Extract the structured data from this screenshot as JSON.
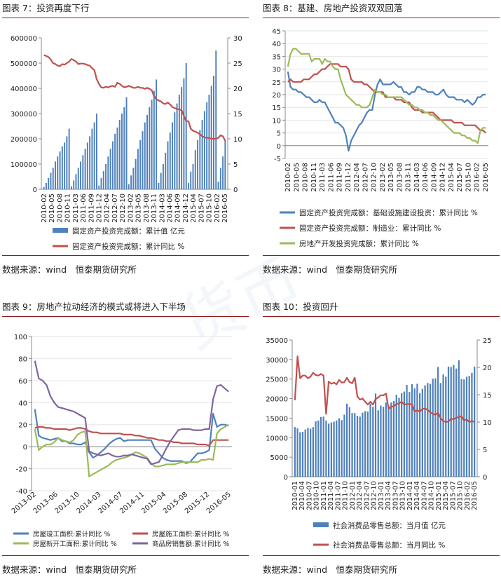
{
  "panels": [
    {
      "title": "图表 7：投资再度下行",
      "source": "数据来源：wind　恒泰期货研究所"
    },
    {
      "title": "图表 8：基建、房地产投资双双回落",
      "source": "数据来源：wind　恒泰期货研究所"
    },
    {
      "title": "图表 9：房地产拉动经济的模式或将进入下半场",
      "source": "数据来源：wind　恒泰期货研究所"
    },
    {
      "title": "图表 10：投资回升",
      "source": "数据来源：wind　恒泰期货研究所"
    }
  ],
  "colors": {
    "blue": "#4f81bd",
    "red": "#c0504d",
    "green": "#9bbb59",
    "purple": "#8064a2",
    "rule": "#8b1a1a",
    "grid": "#d9d9d9"
  },
  "chart_data": [
    {
      "type": "bar",
      "x_ticks": [
        "2010-02",
        "2010-05",
        "2010-08",
        "2010-11",
        "2011-03",
        "2011-06",
        "2011-09",
        "2011-12",
        "2012-04",
        "2012-07",
        "2012-10",
        "2013-02",
        "2013-05",
        "2013-08",
        "2013-11",
        "2014-03",
        "2014-06",
        "2014-09",
        "2014-12",
        "2015-04",
        "2015-07",
        "2015-10",
        "2016-02",
        "2016-05"
      ],
      "ylim": [
        0,
        600000
      ],
      "y_ticks": [
        "0",
        "100000",
        "200000",
        "300000",
        "400000",
        "500000",
        "600000"
      ],
      "y2lim": [
        0,
        30
      ],
      "y2_ticks": [
        "0",
        "5",
        "10",
        "15",
        "20",
        "25",
        "30"
      ],
      "series": [
        {
          "name": "固定资产投资完成额：累计值 亿元",
          "kind": "bar",
          "axis": "left",
          "values": [
            9000,
            25000,
            45000,
            65000,
            85000,
            110000,
            130000,
            150000,
            170000,
            185000,
            210000,
            240000,
            12000,
            35000,
            60000,
            85000,
            110000,
            135000,
            160000,
            185000,
            210000,
            240000,
            265000,
            300000,
            15000,
            45000,
            72000,
            100000,
            130000,
            160000,
            190000,
            220000,
            245000,
            275000,
            300000,
            325000,
            365000,
            20000,
            55000,
            85000,
            120000,
            160000,
            195000,
            230000,
            265000,
            295000,
            325000,
            355000,
            390000,
            435000,
            25000,
            65000,
            100000,
            145000,
            190000,
            225000,
            265000,
            305000,
            340000,
            375000,
            405000,
            440000,
            500000,
            25000,
            70000,
            100000,
            155000,
            195000,
            235000,
            275000,
            310000,
            345000,
            375000,
            410000,
            450000,
            550000,
            30000,
            85000,
            130000,
            195000
          ]
        },
        {
          "name": "固定资产投资完成额：累计同比 %",
          "kind": "line",
          "axis": "right",
          "values": [
            26.6,
            26.4,
            26.2,
            25.7,
            25.0,
            24.8,
            24.5,
            24.4,
            24.8,
            24.7,
            25.0,
            25.3,
            25.8,
            25.6,
            25.3,
            24.8,
            24.9,
            24.9,
            24.8,
            24.6,
            24.5,
            24.0,
            23.6,
            21.8,
            20.9,
            20.2,
            20.1,
            20.3,
            20.2,
            20.4,
            20.5,
            20.3,
            21.1,
            20.9,
            20.5,
            20.2,
            20.3,
            20.5,
            20.3,
            20.1,
            20.1,
            20.3,
            20.1,
            20.1,
            19.9,
            20.1,
            19.9,
            19.6,
            18.5,
            17.8,
            17.6,
            17.4,
            17.0,
            16.9,
            17.2,
            16.8,
            16.3,
            16.1,
            15.9,
            15.8,
            15.7,
            14.6,
            13.5,
            13.5,
            12.0,
            11.6,
            11.4,
            11.2,
            10.9,
            10.5,
            10.3,
            10.2,
            10.2,
            10.0,
            10.0,
            10.0,
            10.2,
            10.7,
            10.5,
            9.6
          ]
        }
      ]
    },
    {
      "type": "line",
      "x_ticks": [
        "2010-02",
        "2010-05",
        "2010-08",
        "2010-11",
        "2011-03",
        "2011-06",
        "2011-09",
        "2011-12",
        "2012-04",
        "2012-07",
        "2012-10",
        "2013-02",
        "2013-05",
        "2013-08",
        "2013-11",
        "2014-03",
        "2014-06",
        "2014-09",
        "2014-12",
        "2015-04",
        "2015-07",
        "2015-10",
        "2016-02",
        "2016-05"
      ],
      "ylim": [
        -5,
        45
      ],
      "y_ticks": [
        "-5",
        "0",
        "5",
        "10",
        "15",
        "20",
        "25",
        "30",
        "35",
        "40",
        "45"
      ],
      "series": [
        {
          "name": "固定资产投资完成额：基础设施建设投资：累计同比 %",
          "values": [
            29,
            23,
            22,
            22,
            21,
            21,
            20,
            19,
            19,
            18,
            17,
            17,
            18,
            17,
            17,
            15,
            13,
            11,
            9,
            9,
            8,
            7,
            4,
            -2,
            2,
            4,
            6,
            8,
            9,
            11,
            13,
            14,
            14,
            20,
            24,
            26,
            24,
            24,
            24,
            24,
            25,
            24,
            23,
            23,
            21,
            21,
            20,
            21,
            21,
            23,
            23,
            22,
            22,
            21,
            21,
            21,
            20,
            20,
            21,
            22,
            20,
            19,
            19,
            19,
            18,
            18,
            18,
            17,
            18,
            17,
            16,
            17,
            19,
            19,
            20,
            20
          ]
        },
        {
          "name": "固定资产投资完成额：制造业：累计同比 %",
          "values": [
            25,
            26,
            25,
            25,
            25,
            25,
            26,
            26,
            26,
            27,
            28,
            28,
            29,
            30,
            30,
            31,
            32,
            32,
            32,
            32,
            31,
            31,
            31,
            30,
            26,
            25,
            25,
            25,
            25,
            24,
            24,
            23,
            22,
            21,
            21,
            21,
            21,
            19,
            19,
            19,
            19,
            18,
            18,
            18,
            17,
            17,
            17,
            15,
            14,
            14,
            14,
            13,
            13,
            13,
            13,
            13,
            12,
            11,
            10,
            10,
            10,
            10,
            10,
            9,
            9,
            9,
            9,
            8,
            8,
            8,
            8,
            8,
            7,
            6,
            6,
            5
          ]
        },
        {
          "name": "房地产开发投资完成额：累计同比 %",
          "values": [
            31,
            36,
            38,
            38,
            37,
            36,
            36,
            36,
            36,
            33,
            34,
            34,
            34,
            32,
            34,
            33,
            33,
            31,
            30,
            30,
            26,
            23,
            20,
            19,
            18,
            17,
            16,
            16,
            15,
            15,
            15,
            16,
            19,
            22,
            21,
            21,
            20,
            20,
            19,
            19,
            19,
            19,
            19,
            19,
            18,
            17,
            16,
            16,
            15,
            15,
            14,
            14,
            13,
            13,
            12,
            12,
            11,
            10,
            10,
            9,
            8,
            7,
            6,
            5,
            5,
            5,
            4,
            4,
            3,
            3,
            2,
            2,
            1,
            6,
            7,
            7
          ]
        }
      ]
    },
    {
      "type": "line",
      "x_ticks": [
        "2013-02",
        "2013-06",
        "2013-10",
        "2014-03",
        "2014-07",
        "2014-11",
        "2015-04",
        "2015-08",
        "2015-12",
        "2016-05"
      ],
      "ylim": [
        -40,
        100
      ],
      "y_ticks": [
        "-40",
        "-20",
        "0",
        "20",
        "40",
        "60",
        "80",
        "100"
      ],
      "series": [
        {
          "name": "房屋竣工面积:累计同比 %",
          "values": [
            34,
            10,
            8,
            7,
            6,
            7,
            8,
            5,
            5,
            3,
            3,
            2,
            2,
            4,
            -5,
            -10,
            -8,
            -5,
            -2,
            2,
            5,
            7,
            8,
            5,
            6,
            6,
            6,
            6,
            6,
            6,
            6,
            -2,
            -6,
            -10,
            -12,
            -13,
            -13,
            -13,
            -13,
            -15,
            -14,
            -10,
            -6,
            -6,
            -5,
            -3,
            30,
            18,
            20,
            20,
            19
          ]
        },
        {
          "name": "房屋施工面积:累计同比 %",
          "values": [
            17,
            18,
            18,
            17,
            17,
            16,
            16,
            16,
            16,
            15,
            16,
            17,
            17,
            16,
            14,
            13,
            13,
            12,
            12,
            12,
            12,
            12,
            12,
            11,
            11,
            11,
            10,
            10,
            9,
            8,
            8,
            7,
            6,
            6,
            5,
            5,
            4,
            4,
            3,
            3,
            3,
            3,
            2,
            2,
            2,
            1,
            6,
            6,
            6,
            6,
            6
          ]
        },
        {
          "name": "房屋新开工面积:累计同比 %",
          "values": [
            16,
            -3,
            0,
            2,
            2,
            4,
            8,
            6,
            5,
            4,
            6,
            11,
            13,
            14,
            -27,
            -25,
            -23,
            -21,
            -19,
            -17,
            -14,
            -12,
            -11,
            -10,
            -9,
            -7,
            -5,
            -6,
            -8,
            -10,
            -15,
            -18,
            -18,
            -17,
            -16,
            -16,
            -16,
            -15,
            -14,
            -14,
            -14,
            -14,
            -14,
            -12,
            -12,
            -11,
            -12,
            12,
            16,
            18,
            20
          ]
        },
        {
          "name": "商品房销售额:累计同比 %",
          "values": [
            78,
            62,
            60,
            56,
            46,
            40,
            36,
            35,
            34,
            33,
            32,
            30,
            28,
            26,
            -4,
            -6,
            -7,
            -8,
            -7,
            -6,
            -8,
            -9,
            -9,
            -8,
            -8,
            -7,
            -8,
            -9,
            -10,
            -11,
            -16,
            -15,
            -14,
            -8,
            -1,
            5,
            10,
            15,
            16,
            16,
            16,
            15,
            15,
            15,
            16,
            16,
            43,
            55,
            56,
            53,
            50
          ]
        }
      ]
    },
    {
      "type": "bar",
      "x_ticks": [
        "2010-01",
        "2010-04",
        "2010-07",
        "2010-10",
        "2011-01",
        "2011-04",
        "2011-07",
        "2011-10",
        "2012-01",
        "2012-04",
        "2012-07",
        "2012-10",
        "2013-01",
        "2013-04",
        "2013-07",
        "2013-10",
        "2014-01",
        "2014-04",
        "2014-07",
        "2014-10",
        "2015-01",
        "2015-04",
        "2015-07",
        "2015-10",
        "2016-02",
        "2016-05"
      ],
      "ylim": [
        0,
        35000
      ],
      "y_ticks": [
        "0",
        "5000",
        "10000",
        "15000",
        "20000",
        "25000",
        "30000",
        "35000"
      ],
      "y2lim": [
        0,
        25
      ],
      "y2_ticks": [
        "0",
        "5",
        "10",
        "15",
        "20",
        "25"
      ],
      "series": [
        {
          "name": "社会消费品零售总额：当月值 亿元",
          "kind": "bar",
          "axis": "left",
          "values": [
            12700,
            12400,
            11400,
            11500,
            12100,
            12500,
            12300,
            12700,
            14200,
            14400,
            15300,
            15400,
            14400,
            13600,
            13900,
            14100,
            14400,
            15000,
            14500,
            15900,
            18700,
            17800,
            16300,
            16300,
            15600,
            15400,
            16400,
            16800,
            16700,
            18700,
            17900,
            21300,
            17000,
            18200,
            17900,
            19000,
            18300,
            19000,
            19400,
            21000,
            20200,
            21400,
            21800,
            23500,
            21700,
            23700,
            22600,
            23800,
            21400,
            22500,
            23400,
            24000,
            23800,
            25100,
            25200,
            28100,
            24000,
            26200,
            25600,
            28200,
            28100,
            28600,
            27700,
            29800,
            25000,
            24900,
            25600,
            25800,
            26600,
            28200
          ]
        },
        {
          "name": "社会消费品零售总额：当月同比 %",
          "kind": "line",
          "axis": "right",
          "values": [
            14,
            22,
            18,
            18.5,
            18.5,
            18,
            18.3,
            19,
            18.6,
            18.5,
            18.8,
            18.5,
            11.5,
            17.4,
            17,
            17.2,
            16.9,
            17.7,
            17.2,
            17.3,
            18.1,
            17.3,
            17.1,
            18.1,
            14.7,
            14.1,
            14.3,
            13.7,
            13.2,
            13.7,
            13.2,
            14.2,
            14.5,
            14.9,
            14.9,
            15.2,
            12.4,
            12.8,
            12.9,
            13.3,
            13.4,
            13.7,
            13.2,
            13.3,
            13.3,
            13.2,
            11.9,
            12.2,
            11.9,
            12.4,
            12.5,
            12.2,
            11.8,
            11.5,
            11.3,
            11.7,
            10.7,
            10.2,
            10.0,
            10.1,
            10.6,
            10.5,
            10.8,
            10.9,
            11.1,
            10.3,
            10.5,
            10.0,
            10.2,
            10.0
          ]
        }
      ]
    }
  ]
}
